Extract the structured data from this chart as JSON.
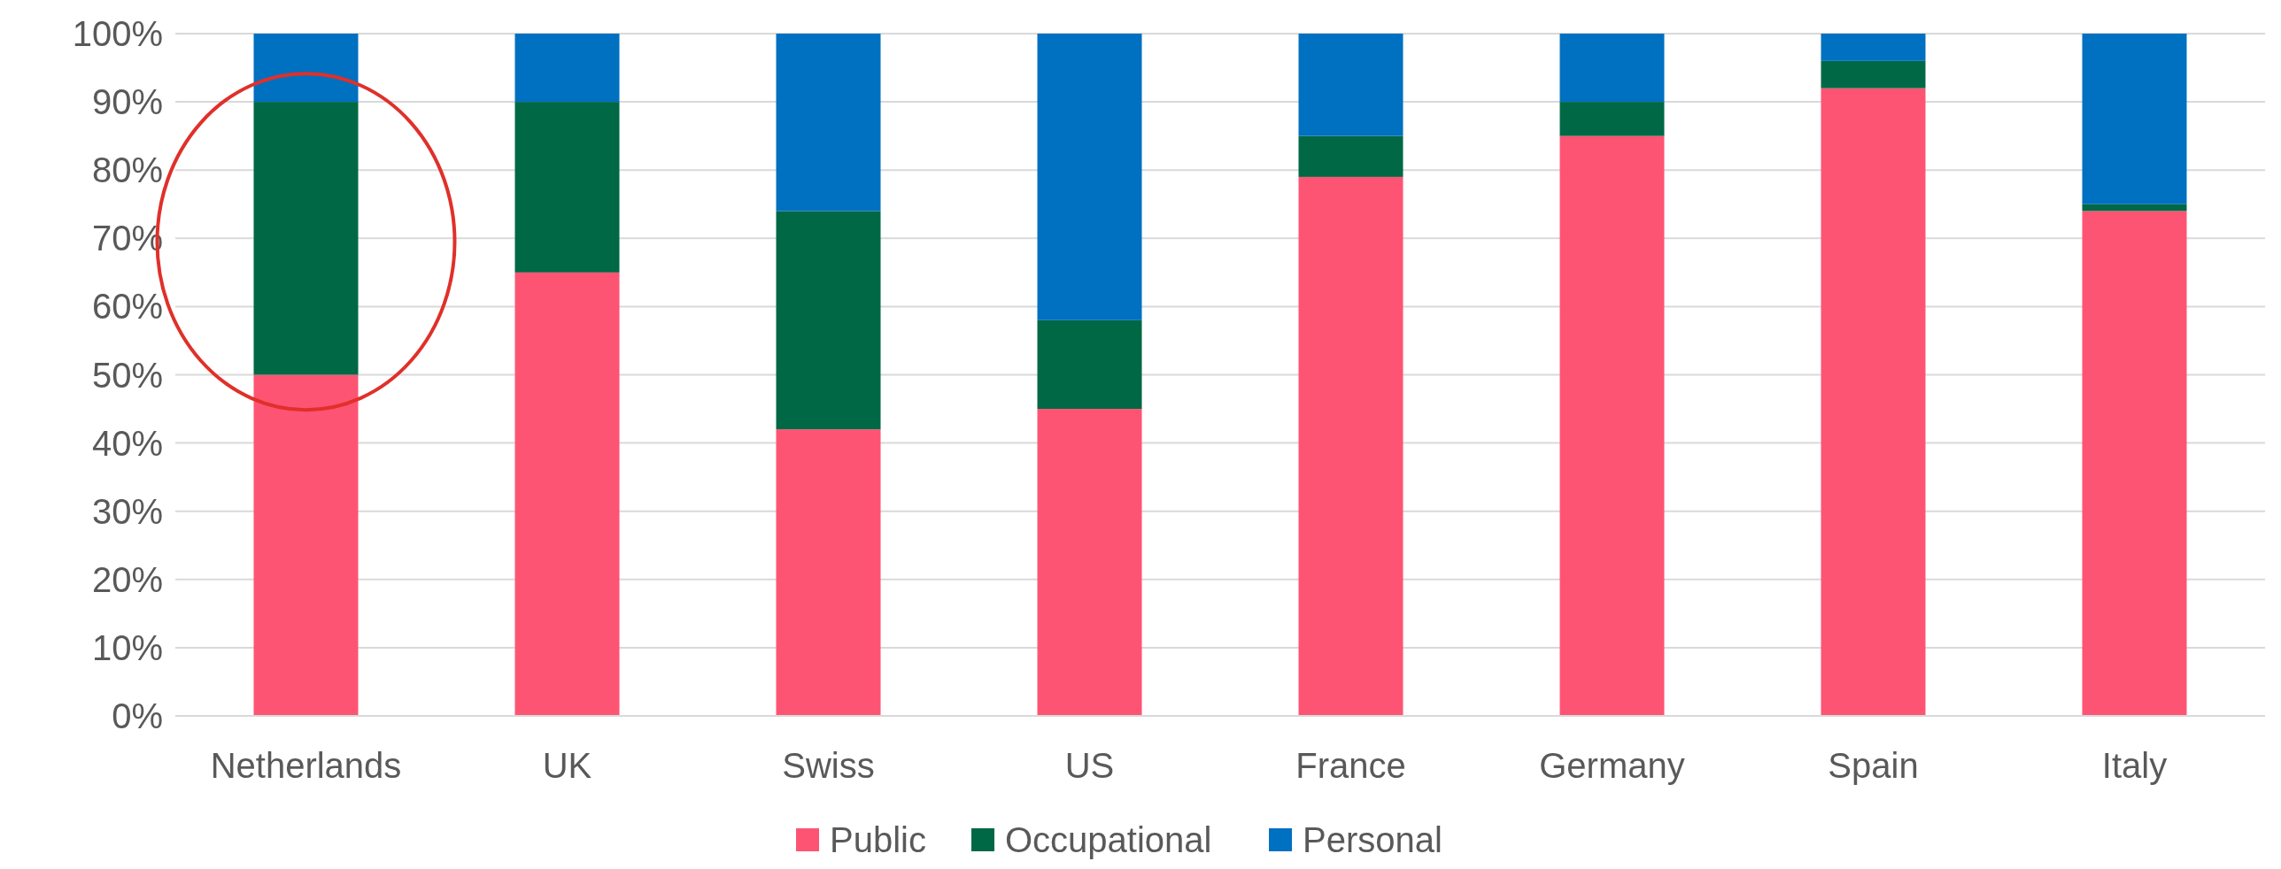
{
  "chart_data": {
    "type": "bar",
    "stacked": true,
    "categories": [
      "Netherlands",
      "UK",
      "Swiss",
      "US",
      "France",
      "Germany",
      "Spain",
      "Italy"
    ],
    "series": [
      {
        "name": "Public",
        "color": "#fe5473",
        "values": [
          50,
          65,
          42,
          45,
          79,
          85,
          92,
          74
        ]
      },
      {
        "name": "Occupational",
        "color": "#006845",
        "values": [
          40,
          25,
          32,
          13,
          6,
          5,
          4,
          1
        ]
      },
      {
        "name": "Personal",
        "color": "#0070c0",
        "values": [
          10,
          10,
          26,
          42,
          15,
          10,
          4,
          25
        ]
      }
    ],
    "ylim": [
      0,
      100
    ],
    "yticks": [
      {
        "value": 0,
        "label": "0%"
      },
      {
        "value": 10,
        "label": "10%"
      },
      {
        "value": 20,
        "label": "20%"
      },
      {
        "value": 30,
        "label": "30%"
      },
      {
        "value": 40,
        "label": "40%"
      },
      {
        "value": 50,
        "label": "50%"
      },
      {
        "value": 60,
        "label": "60%"
      },
      {
        "value": 70,
        "label": "70%"
      },
      {
        "value": 80,
        "label": "80%"
      },
      {
        "value": 90,
        "label": "90%"
      },
      {
        "value": 100,
        "label": "100%"
      }
    ],
    "grid": "y",
    "legend": "bottom"
  }
}
